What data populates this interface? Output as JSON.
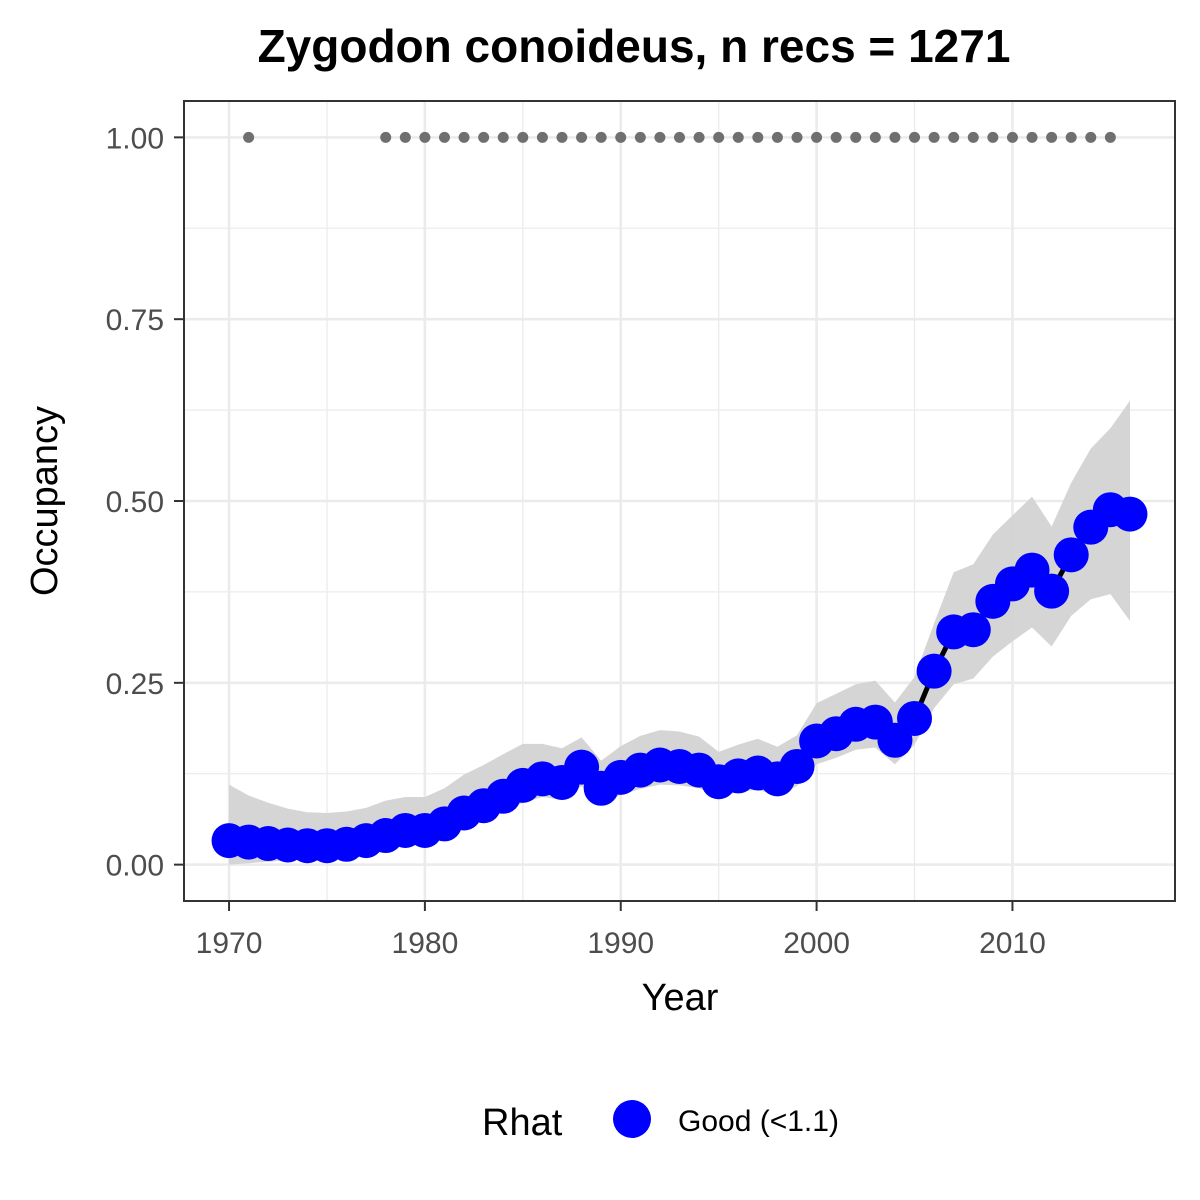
{
  "chart_data": {
    "type": "line",
    "title": "Zygodon conoideus, n recs = 1271",
    "xlabel": "Year",
    "ylabel": "Occupancy",
    "xlim": [
      1967.7,
      2018.3
    ],
    "ylim": [
      -0.05,
      1.05
    ],
    "x_ticks": [
      1970,
      1980,
      1990,
      2000,
      2010
    ],
    "x_tick_labels": [
      "1970",
      "1980",
      "1990",
      "2000",
      "2010"
    ],
    "y_ticks": [
      0,
      0.25,
      0.5,
      0.75,
      1
    ],
    "y_tick_labels": [
      "0.00",
      "0.25",
      "0.50",
      "0.75",
      "1.00"
    ],
    "grid": true,
    "series": [
      {
        "name": "Good (<1.1)",
        "color": "#0000ff",
        "x": [
          1970,
          1971,
          1972,
          1973,
          1974,
          1975,
          1976,
          1977,
          1978,
          1979,
          1980,
          1981,
          1982,
          1983,
          1984,
          1985,
          1986,
          1987,
          1988,
          1989,
          1990,
          1991,
          1992,
          1993,
          1994,
          1995,
          1996,
          1997,
          1998,
          1999,
          2000,
          2001,
          2002,
          2003,
          2004,
          2005,
          2006,
          2007,
          2008,
          2009,
          2010,
          2011,
          2012,
          2013,
          2014,
          2015,
          2016
        ],
        "y": [
          0.033,
          0.031,
          0.029,
          0.027,
          0.026,
          0.026,
          0.028,
          0.033,
          0.04,
          0.047,
          0.047,
          0.056,
          0.071,
          0.081,
          0.094,
          0.109,
          0.118,
          0.113,
          0.134,
          0.105,
          0.12,
          0.13,
          0.137,
          0.135,
          0.13,
          0.114,
          0.122,
          0.126,
          0.118,
          0.135,
          0.17,
          0.18,
          0.193,
          0.196,
          0.171,
          0.201,
          0.266,
          0.32,
          0.323,
          0.362,
          0.386,
          0.405,
          0.376,
          0.426,
          0.464,
          0.488,
          0.482
        ],
        "lower": [
          0.0,
          0.002,
          0.004,
          0.006,
          0.007,
          0.008,
          0.011,
          0.018,
          0.024,
          0.03,
          0.03,
          0.039,
          0.052,
          0.061,
          0.073,
          0.085,
          0.093,
          0.089,
          0.108,
          0.082,
          0.096,
          0.104,
          0.11,
          0.109,
          0.105,
          0.093,
          0.1,
          0.103,
          0.095,
          0.108,
          0.138,
          0.147,
          0.158,
          0.161,
          0.138,
          0.165,
          0.215,
          0.248,
          0.256,
          0.286,
          0.307,
          0.326,
          0.3,
          0.342,
          0.365,
          0.372,
          0.335
        ],
        "upper": [
          0.11,
          0.095,
          0.085,
          0.077,
          0.072,
          0.071,
          0.073,
          0.078,
          0.088,
          0.093,
          0.093,
          0.105,
          0.124,
          0.137,
          0.152,
          0.166,
          0.166,
          0.16,
          0.175,
          0.143,
          0.163,
          0.177,
          0.185,
          0.183,
          0.176,
          0.155,
          0.165,
          0.173,
          0.162,
          0.178,
          0.222,
          0.235,
          0.248,
          0.253,
          0.223,
          0.258,
          0.332,
          0.402,
          0.413,
          0.454,
          0.48,
          0.506,
          0.465,
          0.525,
          0.572,
          0.6,
          0.638
        ]
      }
    ],
    "records": {
      "y": 1,
      "x": [
        1971,
        1978,
        1979,
        1980,
        1981,
        1982,
        1983,
        1984,
        1985,
        1986,
        1987,
        1988,
        1989,
        1990,
        1991,
        1992,
        1993,
        1994,
        1995,
        1996,
        1997,
        1998,
        1999,
        2000,
        2001,
        2002,
        2003,
        2004,
        2005,
        2006,
        2007,
        2008,
        2009,
        2010,
        2011,
        2012,
        2013,
        2014,
        2015
      ]
    },
    "colors": {
      "points": "#0000ff",
      "line": "#000000",
      "ribbon": "#d3d3d3",
      "records": "#6f6f6f",
      "grid": "#ebebeb",
      "panel_border": "#333333"
    },
    "legend": {
      "title": "Rhat",
      "label": "Good (<1.1)",
      "position": "bottom"
    }
  }
}
